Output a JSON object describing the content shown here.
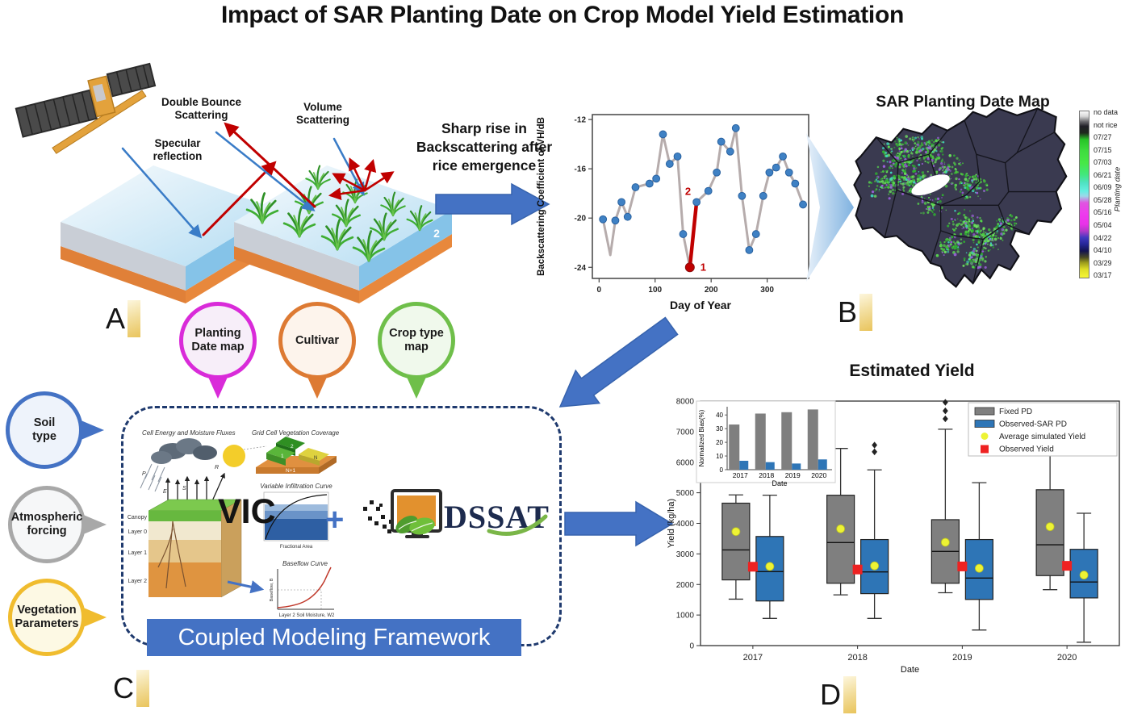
{
  "title": "Impact of SAR Planting Date on Crop Model Yield Estimation",
  "panels": {
    "a": "A",
    "b": "B",
    "c": "C",
    "d": "D"
  },
  "colors": {
    "accent_blue": "#4472c4",
    "framework_border_navy": "#1f3a6e",
    "banner_blue": "#4472c4",
    "highlight_red": "#c00000",
    "fixed_pd_gray": "#7f7f7f",
    "sar_pd_blue": "#2e75b6",
    "mean_yellow": "#edf334",
    "observed_red": "#ee2222",
    "panel_label_gold": "#e9c45c"
  },
  "scattering": {
    "specular_label": "Specular\nreflection",
    "double_bounce_label": "Double Bounce\nScattering",
    "volume_label": "Volume\nScattering",
    "slab1_number": "1",
    "slab2_number": "2"
  },
  "transition_text": "Sharp rise in\nBackscattering after\nrice emergence",
  "sar_map": {
    "title": "SAR Planting Date Map",
    "colorbar_label": "Planting date",
    "colorbar_ticks": [
      "no data",
      "not rice",
      "07/27",
      "07/15",
      "07/03",
      "06/21",
      "06/09",
      "05/28",
      "05/16",
      "05/04",
      "04/22",
      "04/10",
      "03/29",
      "03/17"
    ]
  },
  "pins_top": [
    {
      "label": "Planting\nDate map",
      "color": "#d92bd9",
      "fill": "#f7eef9"
    },
    {
      "label": "Cultivar",
      "color": "#dd7a33",
      "fill": "#fdf4ec"
    },
    {
      "label": "Crop type\nmap",
      "color": "#6fbf4a",
      "fill": "#f0f9ec"
    }
  ],
  "pins_left": [
    {
      "label": "Soil\ntype",
      "color": "#4472c4",
      "fill": "#eef3fb"
    },
    {
      "label": "Atmospheric\nforcing",
      "color": "#a8a8a8",
      "fill": "#f6f7f8"
    },
    {
      "label": "Vegetation\nParameters",
      "color": "#f0bc2e",
      "fill": "#fdf9e4"
    }
  ],
  "framework": {
    "vic_label": "VIC",
    "plus_sign": "+",
    "dssat_label": "DSSAT",
    "banner": "Coupled Modeling Framework",
    "vic_diagram": {
      "flux_title": "Cell Energy and Moisture Fluxes",
      "veg_title": "Grid Cell Vegetation Coverage",
      "infiltration_title": "Variable Infiltration Curve",
      "infiltration_xlabel": "Fractional Area",
      "baseflow_title": "Baseflow Curve",
      "baseflow_ylabel": "Baseflow, B",
      "baseflow_xlabel": "Layer 2 Soil Moisture, W2",
      "layers": [
        "Canopy",
        "Layer 0",
        "Layer 1",
        "Layer 2"
      ],
      "cells": [
        "1",
        "2",
        "N",
        "N+1"
      ],
      "flux_letters": [
        "P",
        "E",
        "S",
        "R"
      ]
    }
  },
  "chart_data": [
    {
      "id": "backscatter",
      "type": "line",
      "title": "",
      "xlabel": "Day of Year",
      "ylabel": "Backscattering Coefficient of VH/dB",
      "xlim": [
        -12,
        374
      ],
      "ylim": [
        -24.9,
        -11.6
      ],
      "xticks": [
        0,
        100,
        200,
        300
      ],
      "yticks": [
        -12,
        -16,
        -20,
        -24
      ],
      "line_color": "#b6acac",
      "marker_color": "#3f81c4",
      "highlight_color": "#c00000",
      "points": [
        [
          7,
          -20.1
        ],
        [
          20,
          -23.0
        ],
        [
          29,
          -20.2
        ],
        [
          40,
          -18.7
        ],
        [
          51,
          -19.9
        ],
        [
          65,
          -17.5
        ],
        [
          90,
          -17.2
        ],
        [
          102,
          -16.8
        ],
        [
          114,
          -13.2
        ],
        [
          126,
          -15.6
        ],
        [
          140,
          -15.0
        ],
        [
          150,
          -21.3
        ],
        [
          162,
          -24.0
        ],
        [
          174,
          -18.7
        ],
        [
          195,
          -17.8
        ],
        [
          210,
          -16.3
        ],
        [
          218,
          -13.8
        ],
        [
          234,
          -14.6
        ],
        [
          244,
          -12.7
        ],
        [
          255,
          -18.2
        ],
        [
          268,
          -22.6
        ],
        [
          280,
          -21.3
        ],
        [
          293,
          -18.2
        ],
        [
          304,
          -16.3
        ],
        [
          316,
          -15.9
        ],
        [
          328,
          -15.0
        ],
        [
          339,
          -16.3
        ],
        [
          350,
          -17.2
        ],
        [
          364,
          -18.9
        ]
      ],
      "no_marker_days": [
        20
      ],
      "highlight": {
        "day_start": 162,
        "day_end": 174,
        "label_start": "1",
        "label_end": "2"
      }
    },
    {
      "id": "yield_boxplot",
      "type": "boxplot",
      "title": "Estimated Yield",
      "xlabel": "Date",
      "ylabel": "Yield (kg/ha)",
      "ylim": [
        0,
        8000
      ],
      "yticks": [
        0,
        1000,
        2000,
        3000,
        4000,
        5000,
        6000,
        7000,
        8000
      ],
      "categories": [
        "2017",
        "2018",
        "2019",
        "2020"
      ],
      "series": [
        {
          "name": "Fixed PD",
          "color": "#7f7f7f",
          "boxes": [
            {
              "whislo": 1520,
              "q1": 2150,
              "med": 3130,
              "q3": 4660,
              "whishi": 4930,
              "mean": 3730,
              "fliers": []
            },
            {
              "whislo": 1660,
              "q1": 2040,
              "med": 3370,
              "q3": 4920,
              "whishi": 6450,
              "mean": 3820,
              "fliers": []
            },
            {
              "whislo": 1730,
              "q1": 2040,
              "med": 3080,
              "q3": 4120,
              "whishi": 7080,
              "mean": 3380,
              "fliers": [
                7420,
                7680,
                7960
              ]
            },
            {
              "whislo": 1830,
              "q1": 2290,
              "med": 3300,
              "q3": 5100,
              "whishi": 6420,
              "mean": 3890,
              "fliers": []
            }
          ]
        },
        {
          "name": "Observed-SAR PD",
          "color": "#2e75b6",
          "boxes": [
            {
              "whislo": 890,
              "q1": 1460,
              "med": 2420,
              "q3": 3570,
              "whishi": 4920,
              "mean": 2590,
              "fliers": []
            },
            {
              "whislo": 890,
              "q1": 1700,
              "med": 2410,
              "q3": 3470,
              "whishi": 5750,
              "mean": 2610,
              "fliers": [
                6340,
                6560
              ]
            },
            {
              "whislo": 510,
              "q1": 1510,
              "med": 2210,
              "q3": 3470,
              "whishi": 5330,
              "mean": 2530,
              "fliers": []
            },
            {
              "whislo": 110,
              "q1": 1560,
              "med": 2080,
              "q3": 3150,
              "whishi": 4330,
              "mean": 2310,
              "fliers": []
            }
          ]
        }
      ],
      "observed": {
        "name": "Observed Yield",
        "color": "#ee2222",
        "values": [
          2580,
          2490,
          2590,
          2610
        ]
      },
      "mean_marker": {
        "name": "Average simulated Yield",
        "color": "#edf334"
      },
      "legend": [
        {
          "label": "Fixed PD",
          "marker": "box",
          "color": "#7f7f7f"
        },
        {
          "label": "Observed-SAR PD",
          "marker": "box",
          "color": "#2e75b6"
        },
        {
          "label": "Average simulated Yield",
          "marker": "dot",
          "color": "#edf334"
        },
        {
          "label": "Observed Yield",
          "marker": "square",
          "color": "#ee2222"
        }
      ]
    },
    {
      "id": "bias_inset",
      "type": "bar",
      "ylabel": "Normalized Bias(%)",
      "xlabel": "Date",
      "categories": [
        "2017",
        "2018",
        "2019",
        "2020"
      ],
      "yticks": [
        0,
        10,
        20,
        30,
        40
      ],
      "ylim": [
        0,
        46
      ],
      "series": [
        {
          "name": "Fixed PD",
          "color": "#7f7f7f",
          "values": [
            33,
            41,
            42,
            44
          ]
        },
        {
          "name": "Observed-SAR PD",
          "color": "#2e75b6",
          "values": [
            6.5,
            5.5,
            4.5,
            7.5
          ]
        }
      ]
    }
  ]
}
